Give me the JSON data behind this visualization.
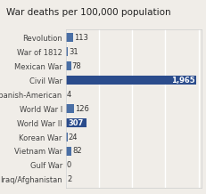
{
  "title": "War deaths per 100,000 population",
  "categories": [
    "Revolution",
    "War of 1812",
    "Mexican War",
    "Civil War",
    "Spanish-American",
    "World War I",
    "World War II",
    "Korean War",
    "Vietnam War",
    "Gulf War",
    "Iraq/Afghanistan"
  ],
  "values": [
    113,
    31,
    78,
    1965,
    4,
    126,
    307,
    24,
    82,
    0,
    2
  ],
  "labels": [
    "113",
    "31",
    "78",
    "1,965",
    "4",
    "126",
    "307",
    "24",
    "82",
    "0",
    "2"
  ],
  "bar_color_default": "#4a6fa5",
  "bar_color_civil": "#2b4c8c",
  "bar_color_ww2": "#2b4c8c",
  "background_color": "#f0ede8",
  "plot_bg_color": "#f0ede8",
  "title_fontsize": 7.5,
  "label_fontsize": 6.0,
  "tick_fontsize": 6.0,
  "xlim": [
    0,
    2050
  ],
  "grid_color": "#ffffff",
  "border_color": "#cccccc"
}
